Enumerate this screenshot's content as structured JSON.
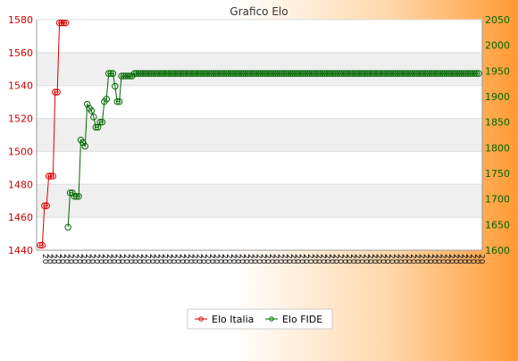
{
  "chart_data": {
    "type": "line",
    "title": "Grafico Elo",
    "y_left": {
      "ylim": [
        1440,
        1580
      ],
      "ticks": [
        1440,
        1460,
        1480,
        1500,
        1520,
        1540,
        1560,
        1580
      ]
    },
    "y_right": {
      "ylim": [
        1600,
        2050
      ],
      "ticks": [
        1600,
        1650,
        1700,
        1750,
        1800,
        1850,
        1900,
        1950,
        2000,
        2050
      ]
    },
    "grid": true,
    "legend": "bottom-center",
    "series": [
      {
        "name": "Elo Italia",
        "axis": "left",
        "color": "#dd0000",
        "x_index": [
          0,
          1,
          2,
          3,
          4,
          5,
          6,
          7,
          8,
          9,
          10,
          11,
          12
        ],
        "values": [
          1443,
          1443,
          1467,
          1467,
          1485,
          1485,
          1485,
          1536,
          1536,
          1578,
          1578,
          1578,
          1578
        ]
      },
      {
        "name": "Elo FIDE",
        "axis": "right",
        "color": "#006600",
        "x_index_start": 13,
        "values": [
          1645,
          1712,
          1712,
          1705,
          1705,
          1705,
          1815,
          1810,
          1803,
          1885,
          1877,
          1872,
          1860,
          1840,
          1840,
          1850,
          1850,
          1890,
          1895,
          1945,
          1945,
          1945,
          1920,
          1890,
          1890,
          1940,
          1940,
          1940,
          1940,
          1940,
          1940,
          1945,
          1945,
          1945,
          1945,
          1945,
          1945,
          1945,
          1945,
          1945,
          1945,
          1945,
          1945,
          1945,
          1945,
          1945,
          1945,
          1945,
          1945,
          1945,
          1945,
          1945,
          1945,
          1945,
          1945,
          1945,
          1945,
          1945,
          1945,
          1945,
          1945,
          1945,
          1945,
          1945,
          1945,
          1945,
          1945,
          1945,
          1945,
          1945,
          1945,
          1945,
          1945,
          1945,
          1945,
          1945,
          1945,
          1945,
          1945,
          1945,
          1945,
          1945,
          1945,
          1945,
          1945,
          1945,
          1945,
          1945,
          1945,
          1945,
          1945,
          1945,
          1945,
          1945,
          1945,
          1945,
          1945,
          1945,
          1945,
          1945,
          1945,
          1945,
          1945,
          1945,
          1945,
          1945,
          1945,
          1945,
          1945,
          1945,
          1945,
          1945,
          1945,
          1945,
          1945,
          1945,
          1945,
          1945,
          1945,
          1945,
          1945,
          1945,
          1945,
          1945,
          1945,
          1945,
          1945,
          1945,
          1945,
          1945,
          1945,
          1945,
          1945,
          1945,
          1945,
          1945,
          1945,
          1945,
          1945,
          1945,
          1945,
          1945,
          1945,
          1945,
          1945,
          1945,
          1945,
          1945,
          1945,
          1945,
          1945,
          1945,
          1945,
          1945,
          1945,
          1945,
          1945,
          1945,
          1945,
          1945,
          1945,
          1945,
          1945,
          1945,
          1945,
          1945,
          1945,
          1945,
          1945,
          1945,
          1945,
          1945,
          1945,
          1945,
          1945,
          1945,
          1945,
          1945,
          1945,
          1945,
          1945,
          1945,
          1945,
          1945,
          1945,
          1945,
          1945,
          1945,
          1945,
          1945,
          1945,
          1945,
          1945
        ]
      }
    ],
    "x_tick_label": "20"
  }
}
